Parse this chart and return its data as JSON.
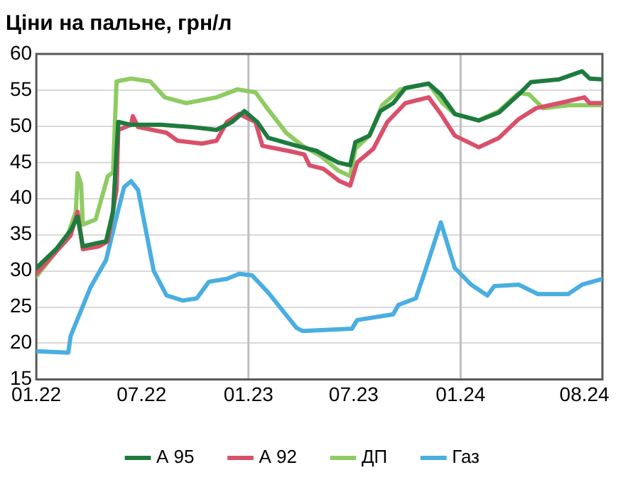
{
  "chart_data": {
    "type": "line",
    "title": "Ціни на пальне, грн/л",
    "xlim": [
      "2022-01-01",
      "2024-09-01"
    ],
    "xticks": [
      {
        "value": "2022-01-01",
        "label": "01.22"
      },
      {
        "value": "2022-07-01",
        "label": "07.22"
      },
      {
        "value": "2023-01-01",
        "label": "01.23"
      },
      {
        "value": "2023-07-01",
        "label": "07.23"
      },
      {
        "value": "2024-01-01",
        "label": "01.24"
      },
      {
        "value": "2024-08-01",
        "label": "08.24"
      }
    ],
    "ylim": [
      15,
      60
    ],
    "yticks": [
      15,
      20,
      25,
      30,
      35,
      40,
      45,
      50,
      55,
      60
    ],
    "grid": "y",
    "legend": "bottom",
    "marker": "none",
    "line_style": "solid",
    "ref_lines": [
      {
        "axis": "x",
        "value": "2023-01-01",
        "color": "#bfbfbf"
      },
      {
        "axis": "x",
        "value": "2024-01-01",
        "color": "#bfbfbf"
      }
    ],
    "series": [
      {
        "name": "А 95",
        "color": "#1e7b3e",
        "x": [
          "2022-01-01",
          "2022-02-04",
          "2022-03-01",
          "2022-03-13",
          "2022-03-22",
          "2022-04-13",
          "2022-05-01",
          "2022-05-13",
          "2022-05-22",
          "2022-06-13",
          "2022-08-04",
          "2022-09-25",
          "2022-11-07",
          "2022-12-04",
          "2022-12-25",
          "2023-01-16",
          "2023-02-04",
          "2023-03-25",
          "2023-04-28",
          "2023-06-04",
          "2023-06-25",
          "2023-07-04",
          "2023-07-28",
          "2023-08-16",
          "2023-09-07",
          "2023-09-28",
          "2023-11-07",
          "2023-11-28",
          "2023-12-22",
          "2024-02-01",
          "2024-03-07",
          "2024-04-10",
          "2024-05-01",
          "2024-06-19",
          "2024-07-28",
          "2024-08-10",
          "2024-09-01"
        ],
        "values": [
          30.4,
          33,
          35.6,
          37.5,
          33.4,
          33.8,
          34.1,
          38.2,
          50.6,
          50.2,
          50.2,
          49.9,
          49.5,
          50.6,
          52.1,
          50.6,
          48.4,
          47.3,
          46.6,
          45,
          44.6,
          47.8,
          48.7,
          52.1,
          53.2,
          55.3,
          55.9,
          54.4,
          51.7,
          50.8,
          51.9,
          54.4,
          56.1,
          56.5,
          57.6,
          56.6,
          56.5
        ]
      },
      {
        "name": "А 92",
        "color": "#d9506a",
        "x": [
          "2022-01-01",
          "2022-03-01",
          "2022-03-13",
          "2022-03-22",
          "2022-04-19",
          "2022-05-04",
          "2022-05-19",
          "2022-05-22",
          "2022-06-13",
          "2022-06-16",
          "2022-06-25",
          "2022-08-13",
          "2022-09-01",
          "2022-10-13",
          "2022-11-07",
          "2022-11-25",
          "2022-12-16",
          "2023-01-13",
          "2023-01-25",
          "2023-03-16",
          "2023-04-07",
          "2023-04-16",
          "2023-05-10",
          "2023-06-07",
          "2023-06-25",
          "2023-07-07",
          "2023-08-04",
          "2023-08-28",
          "2023-09-28",
          "2023-11-07",
          "2023-11-28",
          "2023-12-22",
          "2024-02-01",
          "2024-03-07",
          "2024-04-10",
          "2024-05-10",
          "2024-06-19",
          "2024-08-01",
          "2024-08-10",
          "2024-09-01"
        ],
        "values": [
          29.6,
          34.9,
          38.2,
          33,
          33.4,
          34.1,
          41.2,
          49.5,
          50.2,
          51.4,
          49.9,
          49.1,
          48,
          47.6,
          48,
          50.6,
          51.7,
          50.6,
          47.3,
          46.5,
          46.1,
          44.6,
          44.1,
          42.4,
          41.8,
          45,
          46.9,
          50.6,
          53.2,
          54,
          51.7,
          48.7,
          47.1,
          48.4,
          51,
          52.5,
          53.2,
          54,
          53.2,
          53.2
        ]
      },
      {
        "name": "ДП",
        "color": "#8fcb63",
        "x": [
          "2022-01-01",
          "2022-02-22",
          "2022-03-10",
          "2022-03-13",
          "2022-03-19",
          "2022-03-22",
          "2022-04-13",
          "2022-05-04",
          "2022-05-13",
          "2022-05-19",
          "2022-06-13",
          "2022-07-16",
          "2022-08-10",
          "2022-09-16",
          "2022-11-07",
          "2022-12-13",
          "2023-01-13",
          "2023-02-04",
          "2023-03-07",
          "2023-04-04",
          "2023-05-07",
          "2023-06-04",
          "2023-06-25",
          "2023-07-04",
          "2023-07-28",
          "2023-08-19",
          "2023-09-19",
          "2023-11-07",
          "2023-12-01",
          "2023-12-22",
          "2024-02-01",
          "2024-03-07",
          "2024-04-10",
          "2024-04-28",
          "2024-05-22",
          "2024-07-04",
          "2024-09-01"
        ],
        "values": [
          29.2,
          34.5,
          38.2,
          43.5,
          42,
          36.4,
          37.1,
          43.1,
          43.6,
          56.2,
          56.6,
          56.2,
          54,
          53.2,
          54,
          55.1,
          54.7,
          52.3,
          49.1,
          47.3,
          45.8,
          43.9,
          43.1,
          46.9,
          48.7,
          52.9,
          55.1,
          55.9,
          53.2,
          51.7,
          50.8,
          52.1,
          54.6,
          54.4,
          52.5,
          52.9,
          52.9
        ]
      },
      {
        "name": "Газ",
        "color": "#4aaee0",
        "x": [
          "2022-01-01",
          "2022-02-25",
          "2022-03-01",
          "2022-04-04",
          "2022-05-01",
          "2022-05-19",
          "2022-06-01",
          "2022-06-13",
          "2022-06-25",
          "2022-07-22",
          "2022-08-13",
          "2022-09-10",
          "2022-10-04",
          "2022-10-25",
          "2022-11-25",
          "2022-12-16",
          "2023-01-07",
          "2023-02-04",
          "2023-03-25",
          "2023-04-04",
          "2023-06-28",
          "2023-07-07",
          "2023-09-07",
          "2023-09-16",
          "2023-10-16",
          "2023-11-01",
          "2023-11-28",
          "2023-12-22",
          "2024-01-19",
          "2024-02-16",
          "2024-02-28",
          "2024-04-10",
          "2024-05-13",
          "2024-07-04",
          "2024-07-28",
          "2024-09-01"
        ],
        "values": [
          18.9,
          18.7,
          21,
          27.7,
          31.5,
          37.5,
          41.6,
          42.4,
          41.2,
          30,
          26.6,
          25.9,
          26.2,
          28.5,
          28.9,
          29.6,
          29.4,
          27,
          22.1,
          21.7,
          22,
          23.2,
          24,
          25.3,
          26.2,
          30,
          36.7,
          30.4,
          28.1,
          26.6,
          27.9,
          28.1,
          26.8,
          26.8,
          28.1,
          28.9
        ]
      }
    ]
  }
}
